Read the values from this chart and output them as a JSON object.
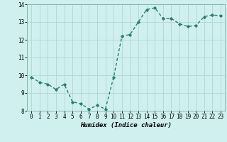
{
  "x": [
    0,
    1,
    2,
    3,
    4,
    5,
    6,
    7,
    8,
    9,
    10,
    11,
    12,
    13,
    14,
    15,
    16,
    17,
    18,
    19,
    20,
    21,
    22,
    23
  ],
  "y": [
    9.9,
    9.6,
    9.5,
    9.2,
    9.5,
    8.5,
    8.4,
    8.1,
    8.3,
    8.1,
    9.9,
    12.2,
    12.3,
    13.0,
    13.7,
    13.8,
    13.2,
    13.2,
    12.9,
    12.75,
    12.8,
    13.3,
    13.4,
    13.35
  ],
  "line_color": "#2e7d6e",
  "marker": "D",
  "marker_size": 1.8,
  "line_width": 1.0,
  "bg_color": "#cff0ee",
  "grid_color": "#aed8d5",
  "xlabel": "Humidex (Indice chaleur)",
  "xlabel_fontsize": 6.5,
  "tick_fontsize": 5.5,
  "xlim": [
    -0.5,
    23.5
  ],
  "ylim": [
    8,
    14
  ],
  "yticks": [
    8,
    9,
    10,
    11,
    12,
    13,
    14
  ],
  "xticks": [
    0,
    1,
    2,
    3,
    4,
    5,
    6,
    7,
    8,
    9,
    10,
    11,
    12,
    13,
    14,
    15,
    16,
    17,
    18,
    19,
    20,
    21,
    22,
    23
  ]
}
